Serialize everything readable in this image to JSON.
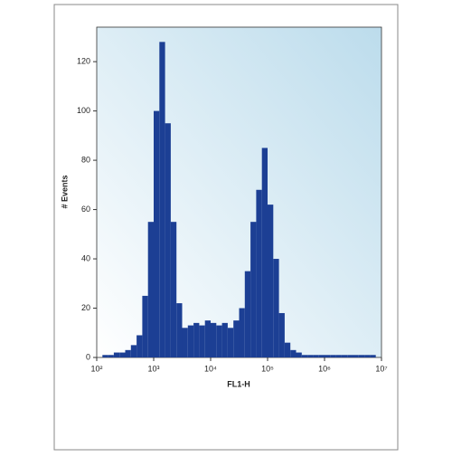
{
  "chart_data": {
    "type": "histogram",
    "xlabel": "FL1-H",
    "ylabel": "# Events",
    "xscale": "log",
    "color": "#1c3f94",
    "bins": [
      100,
      125.9,
      158.5,
      199.5,
      251.2,
      316.2,
      398.1,
      501.2,
      631.0,
      794.3,
      1000,
      1259,
      1585,
      1995,
      2512,
      3162,
      3981,
      5012,
      6310,
      7943,
      10000,
      12590,
      15850,
      19950,
      25120,
      31620,
      39810,
      50120,
      63100,
      79430,
      100000,
      125900,
      158500,
      199500,
      251200,
      316200,
      398100,
      501200,
      631000,
      794300,
      1000000,
      1259000,
      1585000,
      1995000,
      2512000,
      3162000,
      3981000,
      5012000,
      6310000,
      7943000,
      10000000
    ],
    "values": [
      0,
      1,
      1,
      2,
      2,
      3,
      5,
      9,
      25,
      55,
      100,
      128,
      95,
      55,
      22,
      12,
      13,
      14,
      13,
      15,
      14,
      13,
      14,
      12,
      15,
      20,
      35,
      55,
      68,
      85,
      62,
      40,
      18,
      6,
      3,
      2,
      1,
      1,
      1,
      1,
      1,
      1,
      1,
      1,
      1,
      1,
      1,
      1,
      1,
      0
    ],
    "xlim": [
      100,
      10000000
    ],
    "xticks": [
      {
        "value": 100,
        "label": "10²"
      },
      {
        "value": 1000,
        "label": "10³"
      },
      {
        "value": 10000,
        "label": "10⁴"
      },
      {
        "value": 100000,
        "label": "10⁵"
      },
      {
        "value": 1000000,
        "label": "10⁶"
      },
      {
        "value": 10000000,
        "label": "10⁷"
      }
    ],
    "ylim": [
      0,
      134
    ],
    "yticks": [
      0,
      20,
      40,
      60,
      80,
      100,
      120
    ]
  }
}
